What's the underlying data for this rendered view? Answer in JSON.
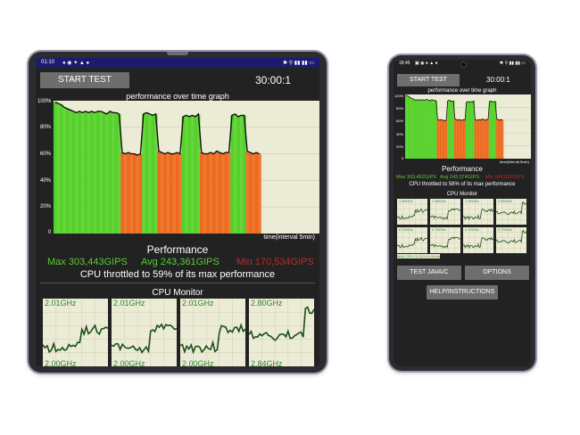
{
  "left": {
    "status_time": "01:10",
    "status_icons": "● ◉ ⁕ ▲ ●",
    "status_right": "✱ ⚲ ▮▮ ▮▮ ▭",
    "start_button": "START TEST",
    "timer": "30:00:1",
    "graph_title": "performance over time graph",
    "yticks": [
      "100%",
      "80%",
      "60%",
      "40%",
      "20%",
      "0"
    ],
    "xlabel": "time(interval 5min)",
    "perf_title": "Performance",
    "max": "Max 303,443GIPS",
    "avg": "Avg 243,361GIPS",
    "min": "Min 170,534GIPS",
    "throttle": "CPU throttled to 59% of its max performance",
    "cpu_monitor_title": "CPU Monitor",
    "freqs": [
      "2.01GHz",
      "2.01GHz",
      "2.01GHz",
      "2.80GHz"
    ],
    "bottom_freqs": [
      "2.00GHz",
      "2.00GHz",
      "2.00GHz",
      "2.84GHz"
    ]
  },
  "right": {
    "status_time": "18:45",
    "status_icons": "▣ ◉ ● ▲ ●",
    "status_right": "✱ ⚲ ▮▮ ▮▮ ▭",
    "start_button": "START TEST",
    "timer": "30:00:1",
    "graph_title": "performance over time graph",
    "yticks": [
      "100%",
      "80%",
      "60%",
      "40%",
      "20%",
      "0"
    ],
    "xlabel": "time(interval 5min)",
    "perf_title": "Performance",
    "max": "Max 303,462GIPS",
    "avg": "Avg 243,374GIPS",
    "min": "Min 184,020GIPS",
    "throttle": "CPU throttled to 58% of its max performance",
    "cpu_monitor_title": "CPU Monitor",
    "freqs": [
      "1.99GHz",
      "1.99GHz",
      "1.99GHz",
      "2.59GHz",
      "0.79GHz",
      "0.79GHz",
      "0.79GHz",
      "0.79GHz"
    ],
    "max_cpu_label": "MAX CPU CLOCK 6.0GHz",
    "test_java_button": "TEST JAVA/C",
    "options_button": "OPTIONS",
    "help_button": "HELP/INSTRUCTIONS"
  },
  "colors": {
    "max_green": "#55cc33",
    "avg_green": "#55cc33",
    "min_red": "#c02828",
    "graph_bg": "#ecebd6",
    "bar_green": "#55d22a",
    "bar_orange": "#ee6a1e",
    "line_dark": "#1b4f17",
    "status_blue": "#1d1b6e"
  },
  "chart_data": {
    "type": "bar",
    "title": "performance over time graph",
    "xlabel": "time(interval 5min)",
    "ylabel": "",
    "ylim": [
      0,
      100
    ],
    "y_unit": "%",
    "values": [
      99,
      98,
      97,
      95,
      94,
      93,
      92,
      91,
      92,
      91,
      92,
      91,
      92,
      91,
      92,
      92,
      91,
      90,
      92,
      91,
      91,
      90,
      61,
      60,
      61,
      60,
      60,
      59,
      60,
      90,
      91,
      90,
      89,
      90,
      62,
      61,
      60,
      61,
      60,
      60,
      61,
      60,
      88,
      89,
      88,
      89,
      88,
      90,
      61,
      60,
      60,
      61,
      60,
      62,
      61,
      60,
      61,
      61,
      89,
      90,
      88,
      89,
      89,
      62,
      61,
      60,
      61,
      60
    ],
    "colors": [
      "g",
      "g",
      "g",
      "g",
      "g",
      "g",
      "g",
      "g",
      "g",
      "g",
      "g",
      "g",
      "g",
      "g",
      "g",
      "g",
      "g",
      "g",
      "g",
      "g",
      "g",
      "g",
      "o",
      "o",
      "o",
      "o",
      "o",
      "o",
      "o",
      "g",
      "g",
      "g",
      "g",
      "g",
      "o",
      "o",
      "o",
      "o",
      "o",
      "o",
      "o",
      "o",
      "g",
      "g",
      "g",
      "g",
      "g",
      "g",
      "o",
      "o",
      "o",
      "o",
      "o",
      "o",
      "o",
      "o",
      "o",
      "o",
      "g",
      "g",
      "g",
      "g",
      "g",
      "o",
      "o",
      "o",
      "o",
      "o"
    ]
  }
}
